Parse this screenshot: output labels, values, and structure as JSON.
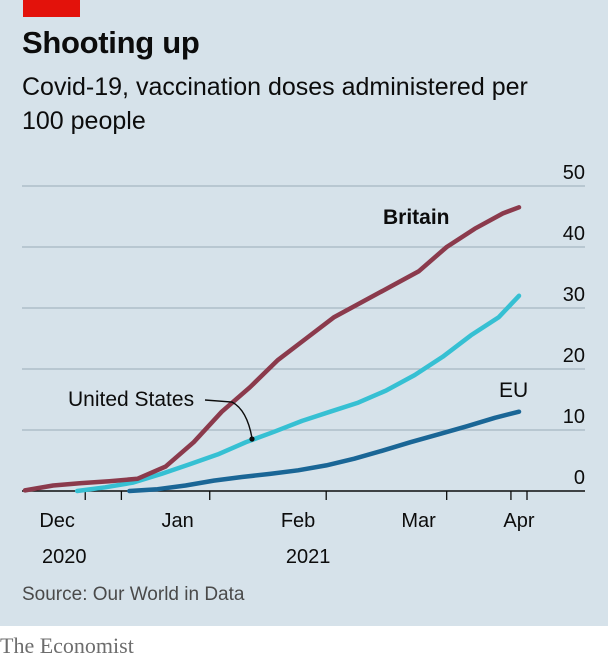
{
  "header": {
    "title": "Shooting up",
    "subtitle": "Covid-19, vaccination doses administered per 100 people"
  },
  "footer": {
    "source": "Source: Our World in Data",
    "brand": "The Economist"
  },
  "colors": {
    "background": "#d6e2ea",
    "brand_red": "#e3120b",
    "britain": "#8b3a4c",
    "united_states": "#36c0d3",
    "eu": "#1a6696",
    "grid": "#a7b7c2"
  },
  "chart_data": {
    "type": "line",
    "title": "Shooting up",
    "subtitle": "Covid-19, vaccination doses administered per 100 people",
    "ylim": [
      0,
      50
    ],
    "y_ticks": [
      "0",
      "10",
      "20",
      "30",
      "40",
      "50"
    ],
    "x_tick_labels": [
      "Dec",
      "Jan",
      "Feb",
      "Mar",
      "Apr"
    ],
    "year_labels": [
      "2020",
      "2021"
    ],
    "grid": "horizontal",
    "x_range": [
      "2020-12-01",
      "2021-04-05"
    ],
    "series": [
      {
        "name": "Britain",
        "color": "#8b3a4c",
        "bold_label": true,
        "x": [
          "2020-12-01",
          "2020-12-08",
          "2020-12-15",
          "2020-12-22",
          "2020-12-29",
          "2021-01-05",
          "2021-01-12",
          "2021-01-19",
          "2021-01-26",
          "2021-02-02",
          "2021-02-09",
          "2021-02-16",
          "2021-02-23",
          "2021-03-02",
          "2021-03-09",
          "2021-03-16",
          "2021-03-23",
          "2021-03-30",
          "2021-04-03"
        ],
        "values": [
          0.1,
          0.9,
          1.3,
          1.6,
          2.0,
          4.0,
          8.0,
          13.0,
          17.0,
          21.5,
          25.0,
          28.5,
          31.0,
          33.5,
          36.0,
          40.0,
          43.0,
          45.5,
          46.5
        ]
      },
      {
        "name": "United States",
        "color": "#36c0d3",
        "bold_label": false,
        "x": [
          "2020-12-14",
          "2020-12-21",
          "2020-12-28",
          "2021-01-04",
          "2021-01-11",
          "2021-01-18",
          "2021-01-25",
          "2021-02-01",
          "2021-02-08",
          "2021-02-15",
          "2021-02-22",
          "2021-03-01",
          "2021-03-08",
          "2021-03-15",
          "2021-03-22",
          "2021-03-29",
          "2021-04-03"
        ],
        "values": [
          0.0,
          0.6,
          1.4,
          2.8,
          4.4,
          6.0,
          8.0,
          9.7,
          11.5,
          13.0,
          14.5,
          16.5,
          19.0,
          22.0,
          25.5,
          28.5,
          32.0
        ]
      },
      {
        "name": "EU",
        "color": "#1a6696",
        "bold_label": false,
        "x": [
          "2020-12-27",
          "2021-01-03",
          "2021-01-10",
          "2021-01-17",
          "2021-01-24",
          "2021-01-31",
          "2021-02-07",
          "2021-02-14",
          "2021-02-21",
          "2021-02-28",
          "2021-03-07",
          "2021-03-14",
          "2021-03-21",
          "2021-03-28",
          "2021-04-03"
        ],
        "values": [
          0.0,
          0.3,
          0.9,
          1.7,
          2.3,
          2.8,
          3.4,
          4.2,
          5.3,
          6.6,
          8.0,
          9.3,
          10.6,
          12.0,
          13.0
        ]
      }
    ]
  }
}
